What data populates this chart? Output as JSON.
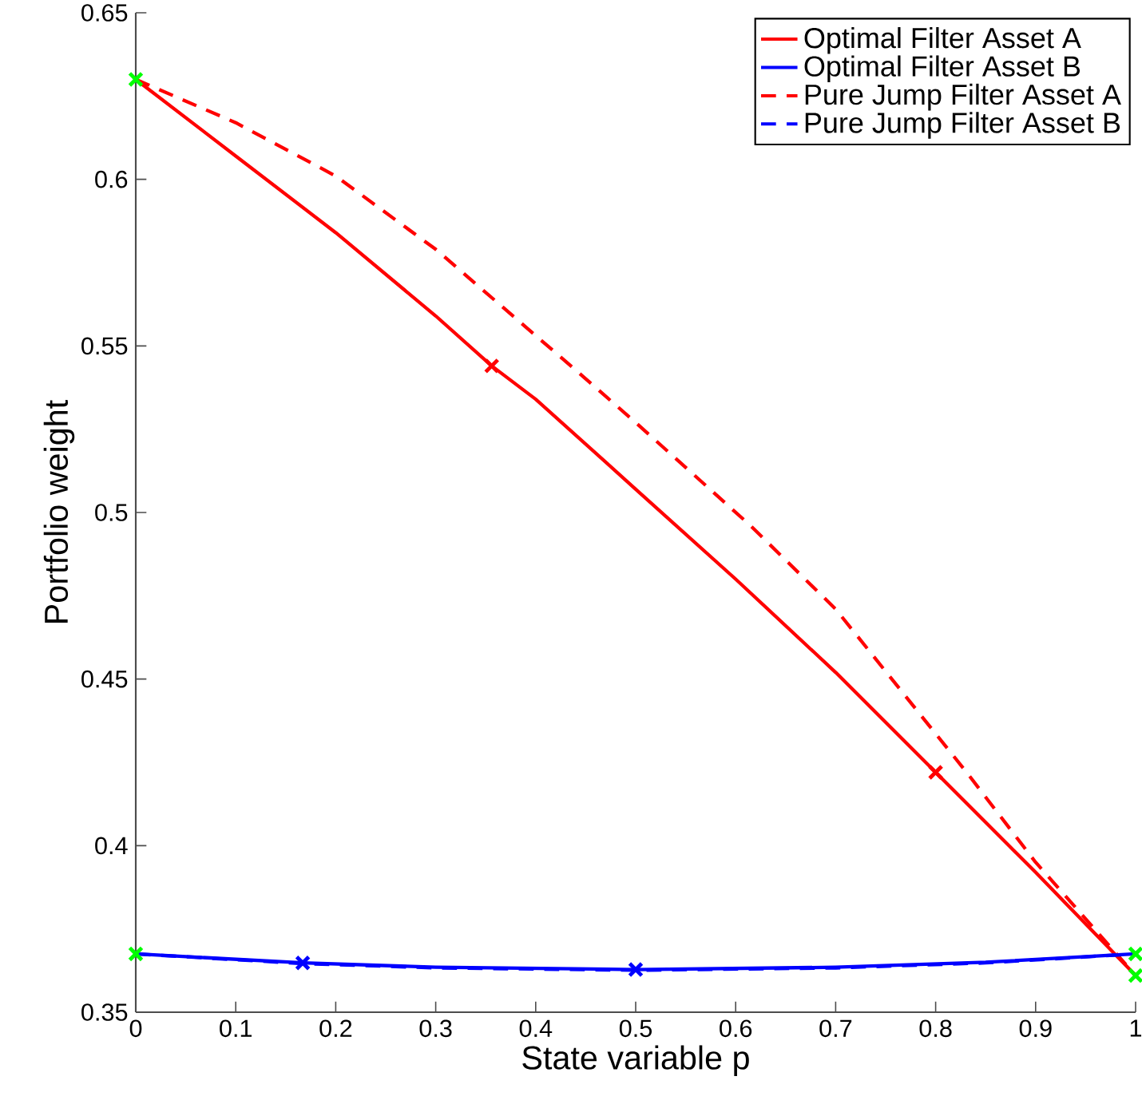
{
  "chart_data": {
    "type": "line",
    "xlabel": "State variable p",
    "ylabel": "Portfolio weight",
    "xlim": [
      0,
      1
    ],
    "ylim": [
      0.35,
      0.65
    ],
    "xticks": [
      0,
      0.1,
      0.2,
      0.3,
      0.4,
      0.5,
      0.6,
      0.7,
      0.8,
      0.9,
      1
    ],
    "yticks": [
      0.35,
      0.4,
      0.45,
      0.5,
      0.55,
      0.6,
      0.65
    ],
    "legend": "top right",
    "marker": "none",
    "grid": false,
    "series": [
      {
        "name": "Optimal Filter Asset A",
        "color": "#ff0000",
        "line_style": "solid",
        "x": [
          0,
          0.1,
          0.2,
          0.3,
          0.356,
          0.4,
          0.5,
          0.6,
          0.7,
          0.8,
          0.9,
          1
        ],
        "values": [
          0.63,
          0.607,
          0.584,
          0.559,
          0.544,
          0.534,
          0.507,
          0.48,
          0.452,
          0.422,
          0.392,
          0.361
        ]
      },
      {
        "name": "Optimal Filter Asset B",
        "color": "#0000ff",
        "line_style": "solid",
        "x": [
          0,
          0.167,
          0.3,
          0.5,
          0.7,
          0.85,
          1
        ],
        "values": [
          0.3675,
          0.3648,
          0.3635,
          0.3628,
          0.3635,
          0.365,
          0.3675
        ]
      },
      {
        "name": "Pure Jump Filter Asset A",
        "color": "#ff0000",
        "line_style": "dashed",
        "x": [
          0,
          0.1,
          0.2,
          0.3,
          0.439,
          0.5,
          0.615,
          0.7,
          0.831,
          0.9,
          1
        ],
        "values": [
          0.63,
          0.617,
          0.601,
          0.579,
          0.543,
          0.527,
          0.496,
          0.471,
          0.422,
          0.395,
          0.361
        ]
      },
      {
        "name": "Pure Jump Filter Asset B",
        "color": "#0000ff",
        "line_style": "dashed",
        "x": [
          0,
          0.167,
          0.3,
          0.5,
          0.7,
          0.85,
          1
        ],
        "values": [
          0.3675,
          0.3646,
          0.3633,
          0.3626,
          0.3633,
          0.3648,
          0.3675
        ]
      },
      {
        "type": "scatter",
        "marker": "cross",
        "color": "#ff0000",
        "x": [
          0.356,
          0.8
        ],
        "values": [
          0.544,
          0.422
        ]
      },
      {
        "type": "scatter",
        "marker": "cross",
        "color": "#0000ff",
        "x": [
          0.167,
          0.5
        ],
        "values": [
          0.3648,
          0.3628
        ]
      },
      {
        "type": "scatter",
        "marker": "cross",
        "color": "#00ff00",
        "x": [
          0,
          0,
          1,
          1
        ],
        "values": [
          0.63,
          0.3675,
          0.3675,
          0.361
        ]
      }
    ]
  }
}
